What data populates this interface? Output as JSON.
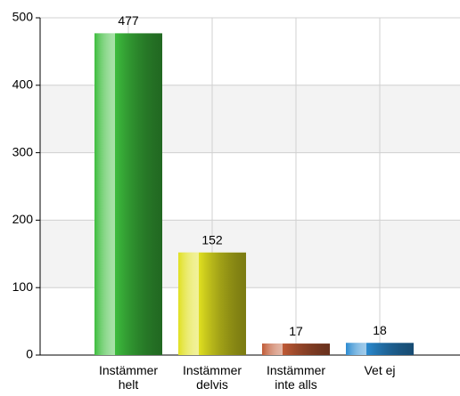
{
  "chart_data": {
    "type": "bar",
    "categories": [
      "Instämmer helt",
      "Instämmer delvis",
      "Instämmer inte alls",
      "Vet ej"
    ],
    "values": [
      477,
      152,
      17,
      18
    ],
    "colors": [
      "#3dbd3d",
      "#e0e020",
      "#c05a35",
      "#2a8ad0"
    ],
    "ylim": [
      0,
      500
    ],
    "yticks": [
      0,
      100,
      200,
      300,
      400,
      500
    ],
    "grid": true
  }
}
